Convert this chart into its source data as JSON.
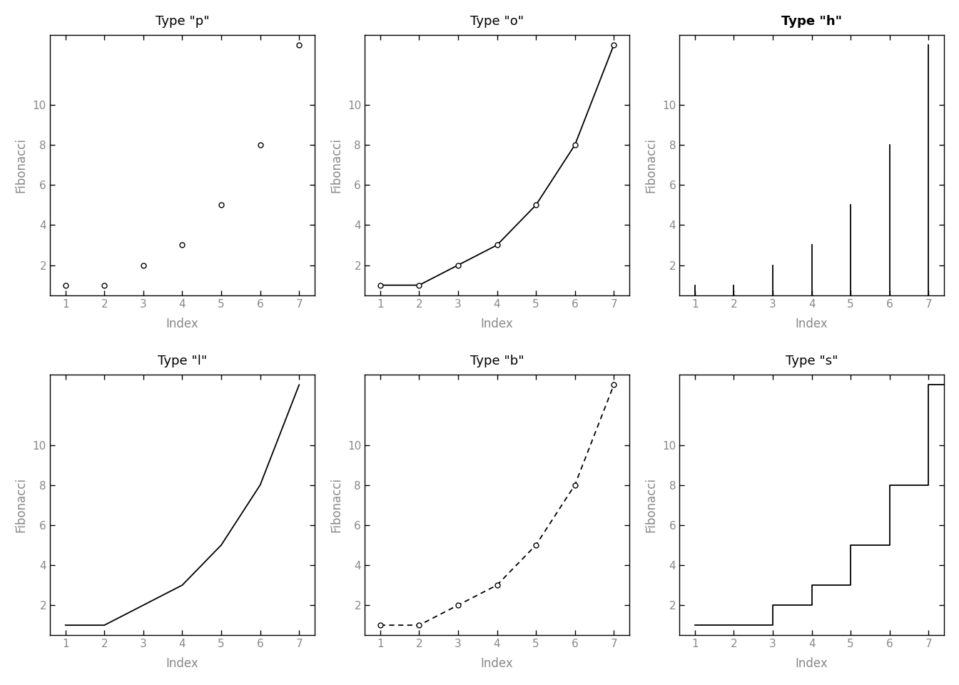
{
  "x": [
    1,
    2,
    3,
    4,
    5,
    6,
    7
  ],
  "y": [
    1,
    1,
    2,
    3,
    5,
    8,
    13
  ],
  "titles": [
    "Type \"p\"",
    "Type \"o\"",
    "Type \"h\"",
    "Type \"l\"",
    "Type \"b\"",
    "Type \"s\""
  ],
  "title_bold": [
    false,
    false,
    true,
    false,
    false,
    false
  ],
  "xlabel": "Index",
  "ylabel": "Fibonacci",
  "xlim": [
    0.6,
    7.4
  ],
  "ylim": [
    0.5,
    13.5
  ],
  "yticks": [
    2,
    4,
    6,
    8,
    10
  ],
  "xticks": [
    1,
    2,
    3,
    4,
    5,
    6,
    7
  ],
  "bg_color": "#ffffff",
  "axis_color": "#000000",
  "label_color": "#888888",
  "title_color": "#000000",
  "line_color": "#000000",
  "marker_facecolor": "#ffffff",
  "marker_edgecolor": "#000000",
  "figsize": [
    13.44,
    9.6
  ],
  "dpi": 100,
  "marker_size": 5,
  "linewidth": 1.3
}
